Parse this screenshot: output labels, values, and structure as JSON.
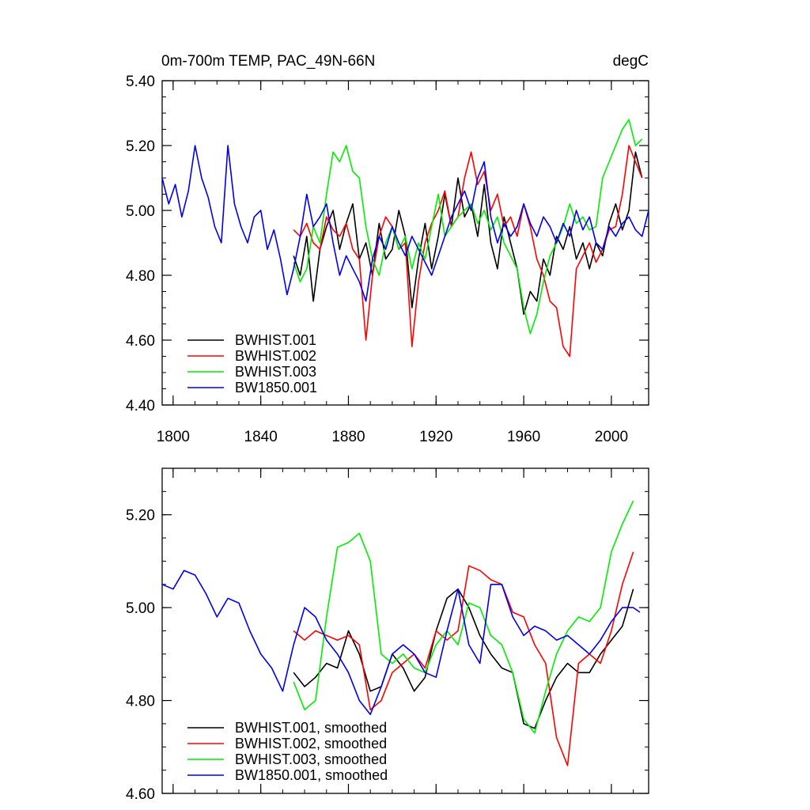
{
  "chart_data": [
    {
      "type": "line",
      "title": "0m-700m TEMP, PAC_49N-66N",
      "units": "degC",
      "xlim": [
        1795,
        2017
      ],
      "ylim": [
        4.4,
        5.4
      ],
      "x_ticks": [
        1800,
        1840,
        1880,
        1920,
        1960,
        2000
      ],
      "x_tick_labels": [
        "1800",
        "1840",
        "1880",
        "1920",
        "1960",
        "2000"
      ],
      "y_ticks": [
        4.4,
        4.6,
        4.8,
        5.0,
        5.2,
        5.4
      ],
      "y_tick_labels": [
        "4.40",
        "4.60",
        "4.80",
        "5.00",
        "5.20",
        "5.40"
      ],
      "legend_position": "bottom-left",
      "series": [
        {
          "name": "BWHIST.001",
          "color": "#000000",
          "x": [
            1855,
            1858,
            1861,
            1864,
            1867,
            1870,
            1873,
            1876,
            1879,
            1882,
            1885,
            1888,
            1891,
            1894,
            1897,
            1900,
            1903,
            1906,
            1909,
            1912,
            1915,
            1918,
            1921,
            1924,
            1927,
            1930,
            1933,
            1936,
            1939,
            1942,
            1945,
            1948,
            1951,
            1954,
            1957,
            1960,
            1963,
            1966,
            1969,
            1972,
            1975,
            1978,
            1981,
            1984,
            1987,
            1990,
            1993,
            1996,
            1999,
            2002,
            2005,
            2008,
            2011,
            2014
          ],
          "values": [
            4.86,
            4.8,
            4.92,
            4.72,
            4.88,
            4.95,
            5.0,
            4.88,
            4.96,
            5.02,
            4.85,
            4.9,
            4.8,
            4.96,
            4.85,
            4.88,
            5.0,
            4.92,
            4.7,
            4.85,
            4.96,
            4.82,
            4.92,
            5.05,
            4.95,
            5.1,
            4.98,
            5.02,
            4.92,
            5.08,
            4.9,
            4.82,
            4.98,
            4.9,
            4.82,
            4.68,
            4.75,
            4.72,
            4.85,
            4.8,
            4.92,
            4.88,
            4.95,
            4.85,
            4.9,
            4.82,
            4.9,
            4.86,
            4.96,
            5.02,
            4.94,
            5.0,
            5.18,
            5.1
          ]
        },
        {
          "name": "BWHIST.002",
          "color": "#ff0000",
          "x": [
            1855,
            1858,
            1861,
            1864,
            1867,
            1870,
            1873,
            1876,
            1879,
            1882,
            1885,
            1888,
            1891,
            1894,
            1897,
            1900,
            1903,
            1906,
            1909,
            1912,
            1915,
            1918,
            1921,
            1924,
            1927,
            1930,
            1933,
            1936,
            1939,
            1942,
            1945,
            1948,
            1951,
            1954,
            1957,
            1960,
            1963,
            1966,
            1969,
            1972,
            1975,
            1978,
            1981,
            1984,
            1987,
            1990,
            1993,
            1996,
            1999,
            2002,
            2005,
            2008,
            2011,
            2014
          ],
          "values": [
            4.94,
            4.92,
            4.96,
            4.9,
            4.88,
            4.98,
            4.94,
            4.92,
            4.96,
            4.88,
            4.85,
            4.6,
            4.8,
            4.92,
            4.98,
            4.95,
            4.88,
            4.9,
            4.58,
            4.78,
            4.9,
            4.96,
            5.0,
            5.06,
            4.95,
            4.98,
            5.1,
            5.18,
            5.08,
            5.12,
            5.0,
            5.05,
            4.95,
            4.98,
            4.92,
            5.02,
            4.95,
            4.85,
            4.8,
            4.72,
            4.7,
            4.58,
            4.55,
            4.82,
            4.86,
            4.9,
            4.84,
            4.88,
            4.94,
            4.95,
            5.05,
            5.2,
            5.15,
            5.1
          ]
        },
        {
          "name": "BWHIST.003",
          "color": "#00ee00",
          "x": [
            1855,
            1858,
            1861,
            1864,
            1867,
            1870,
            1873,
            1876,
            1879,
            1882,
            1885,
            1888,
            1891,
            1894,
            1897,
            1900,
            1903,
            1906,
            1909,
            1912,
            1915,
            1918,
            1921,
            1924,
            1927,
            1930,
            1933,
            1936,
            1939,
            1942,
            1945,
            1948,
            1951,
            1954,
            1957,
            1960,
            1963,
            1966,
            1969,
            1972,
            1975,
            1978,
            1981,
            1984,
            1987,
            1990,
            1993,
            1996,
            1999,
            2002,
            2005,
            2008,
            2011,
            2014
          ],
          "values": [
            4.84,
            4.78,
            4.82,
            4.95,
            4.9,
            5.05,
            5.18,
            5.15,
            5.2,
            5.12,
            5.1,
            4.95,
            4.85,
            4.8,
            4.9,
            4.95,
            4.88,
            4.92,
            4.82,
            4.9,
            4.85,
            4.95,
            5.05,
            4.92,
            4.95,
            4.98,
            5.0,
            5.02,
            4.96,
            5.0,
            4.94,
            4.98,
            4.9,
            4.86,
            4.82,
            4.7,
            4.62,
            4.68,
            4.78,
            4.86,
            4.9,
            4.95,
            5.02,
            4.96,
            4.98,
            4.94,
            4.95,
            5.1,
            5.15,
            5.2,
            5.25,
            5.28,
            5.2,
            5.22
          ]
        },
        {
          "name": "BW1850.001",
          "color": "#0000ee",
          "x": [
            1795,
            1798,
            1801,
            1804,
            1807,
            1810,
            1813,
            1816,
            1819,
            1822,
            1825,
            1828,
            1831,
            1834,
            1837,
            1840,
            1843,
            1846,
            1849,
            1852,
            1855,
            1858,
            1861,
            1864,
            1867,
            1870,
            1873,
            1876,
            1879,
            1882,
            1885,
            1888,
            1891,
            1894,
            1897,
            1900,
            1903,
            1906,
            1909,
            1912,
            1915,
            1918,
            1921,
            1924,
            1927,
            1930,
            1933,
            1936,
            1939,
            1942,
            1945,
            1948,
            1951,
            1954,
            1957,
            1960,
            1963,
            1966,
            1969,
            1972,
            1975,
            1978,
            1981,
            1984,
            1987,
            1990,
            1993,
            1996,
            1999,
            2002,
            2005,
            2008,
            2011,
            2014,
            2017
          ],
          "values": [
            5.1,
            5.02,
            5.08,
            4.98,
            5.06,
            5.2,
            5.1,
            5.04,
            4.95,
            4.9,
            5.2,
            5.02,
            4.95,
            4.9,
            4.98,
            5.0,
            4.88,
            4.94,
            4.85,
            4.74,
            4.82,
            4.92,
            5.05,
            4.95,
            4.98,
            5.02,
            4.9,
            4.8,
            4.86,
            4.82,
            4.78,
            4.72,
            4.85,
            4.92,
            4.88,
            4.95,
            4.9,
            4.86,
            4.92,
            4.88,
            4.84,
            4.8,
            4.86,
            4.92,
            4.98,
            5.02,
            5.06,
            5.0,
            5.1,
            5.15,
            4.98,
            4.9,
            4.96,
            4.92,
            4.95,
            5.02,
            4.96,
            4.92,
            4.98,
            4.95,
            4.9,
            4.96,
            4.92,
            5.0,
            4.94,
            4.98,
            4.9,
            4.88,
            4.95,
            4.92,
            4.96,
            4.98,
            4.94,
            4.92,
            5.0
          ]
        }
      ]
    },
    {
      "type": "line",
      "xlim": [
        1795,
        2017
      ],
      "ylim": [
        4.6,
        5.3
      ],
      "x_ticks": [
        1800,
        1840,
        1880,
        1920,
        1960,
        2000
      ],
      "y_ticks": [
        4.6,
        4.8,
        5.0,
        5.2
      ],
      "y_tick_labels": [
        "4.60",
        "4.80",
        "5.00",
        "5.20"
      ],
      "legend_position": "bottom-left",
      "series": [
        {
          "name": "BWHIST.001, smoothed",
          "color": "#000000",
          "x": [
            1855,
            1860,
            1865,
            1870,
            1875,
            1880,
            1885,
            1890,
            1895,
            1900,
            1905,
            1910,
            1915,
            1920,
            1925,
            1930,
            1935,
            1940,
            1945,
            1950,
            1955,
            1960,
            1965,
            1970,
            1975,
            1980,
            1985,
            1990,
            1995,
            2000,
            2005,
            2010
          ],
          "values": [
            4.86,
            4.83,
            4.85,
            4.88,
            4.87,
            4.95,
            4.9,
            4.82,
            4.83,
            4.9,
            4.87,
            4.82,
            4.85,
            4.95,
            5.02,
            5.04,
            5.0,
            4.94,
            4.9,
            4.87,
            4.86,
            4.75,
            4.74,
            4.8,
            4.85,
            4.88,
            4.86,
            4.86,
            4.9,
            4.93,
            4.96,
            5.04
          ]
        },
        {
          "name": "BWHIST.002, smoothed",
          "color": "#ff0000",
          "x": [
            1855,
            1860,
            1865,
            1870,
            1875,
            1880,
            1885,
            1890,
            1895,
            1900,
            1905,
            1910,
            1915,
            1920,
            1925,
            1930,
            1935,
            1940,
            1945,
            1950,
            1955,
            1960,
            1965,
            1970,
            1975,
            1980,
            1985,
            1990,
            1995,
            2000,
            2005,
            2010
          ],
          "values": [
            4.95,
            4.93,
            4.95,
            4.94,
            4.93,
            4.94,
            4.92,
            4.78,
            4.8,
            4.86,
            4.88,
            4.9,
            4.87,
            4.95,
            4.93,
            4.95,
            5.09,
            5.08,
            5.06,
            5.05,
            4.99,
            4.98,
            4.92,
            4.88,
            4.72,
            4.66,
            4.88,
            4.9,
            4.88,
            4.95,
            5.05,
            5.12
          ]
        },
        {
          "name": "BWHIST.003, smoothed",
          "color": "#00ee00",
          "x": [
            1855,
            1860,
            1865,
            1870,
            1875,
            1880,
            1885,
            1890,
            1895,
            1900,
            1905,
            1910,
            1915,
            1920,
            1925,
            1930,
            1935,
            1940,
            1945,
            1950,
            1955,
            1960,
            1965,
            1970,
            1975,
            1980,
            1985,
            1990,
            1995,
            2000,
            2005,
            2010
          ],
          "values": [
            4.84,
            4.78,
            4.8,
            4.98,
            5.13,
            5.14,
            5.16,
            5.1,
            4.9,
            4.88,
            4.9,
            4.87,
            4.86,
            4.92,
            4.95,
            4.92,
            5.01,
            5.0,
            4.94,
            4.92,
            4.86,
            4.76,
            4.73,
            4.82,
            4.9,
            4.95,
            4.98,
            4.97,
            5.0,
            5.12,
            5.18,
            5.23
          ]
        },
        {
          "name": "BW1850.001, smoothed",
          "color": "#0000ee",
          "x": [
            1795,
            1800,
            1805,
            1810,
            1815,
            1820,
            1825,
            1830,
            1835,
            1840,
            1845,
            1850,
            1855,
            1860,
            1865,
            1870,
            1875,
            1880,
            1885,
            1890,
            1895,
            1900,
            1905,
            1910,
            1915,
            1920,
            1925,
            1930,
            1935,
            1940,
            1945,
            1950,
            1955,
            1960,
            1965,
            1970,
            1975,
            1980,
            1985,
            1990,
            1995,
            2000,
            2005,
            2010,
            2013
          ],
          "values": [
            5.05,
            5.04,
            5.08,
            5.07,
            5.03,
            4.98,
            5.02,
            5.01,
            4.95,
            4.9,
            4.87,
            4.82,
            4.92,
            5.0,
            4.98,
            4.93,
            4.9,
            4.86,
            4.8,
            4.77,
            4.83,
            4.9,
            4.92,
            4.9,
            4.86,
            4.85,
            4.95,
            5.04,
            4.92,
            4.88,
            5.05,
            5.05,
            4.98,
            4.94,
            4.96,
            4.95,
            4.93,
            4.94,
            4.92,
            4.9,
            4.93,
            4.97,
            5.0,
            5.0,
            4.99
          ]
        }
      ]
    }
  ]
}
